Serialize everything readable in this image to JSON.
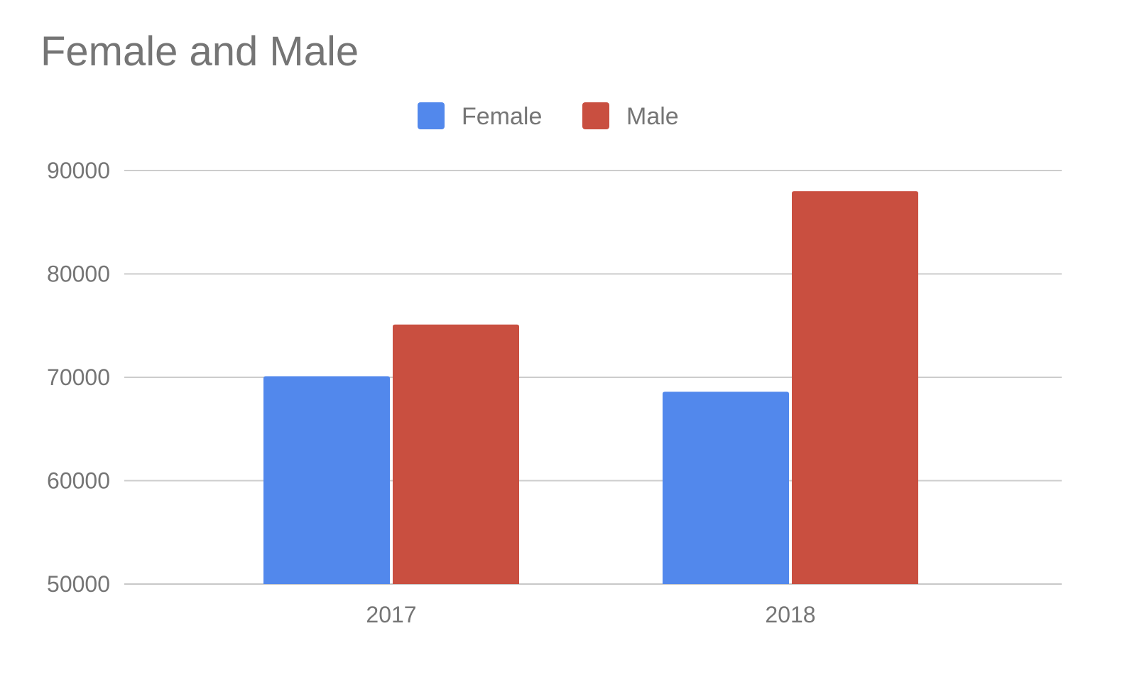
{
  "chart_data": {
    "type": "bar",
    "title": "Female and Male",
    "xlabel": "",
    "ylabel": "",
    "categories": [
      "2017",
      "2018"
    ],
    "series": [
      {
        "name": "Female",
        "color": "#5288ec",
        "values": [
          70100,
          68600
        ]
      },
      {
        "name": "Male",
        "color": "#c94f40",
        "values": [
          75100,
          88000
        ]
      }
    ],
    "ylim": [
      50000,
      90000
    ],
    "yticks": [
      "50000",
      "60000",
      "70000",
      "80000",
      "90000"
    ],
    "grid": true,
    "legend_position": "top-center"
  }
}
